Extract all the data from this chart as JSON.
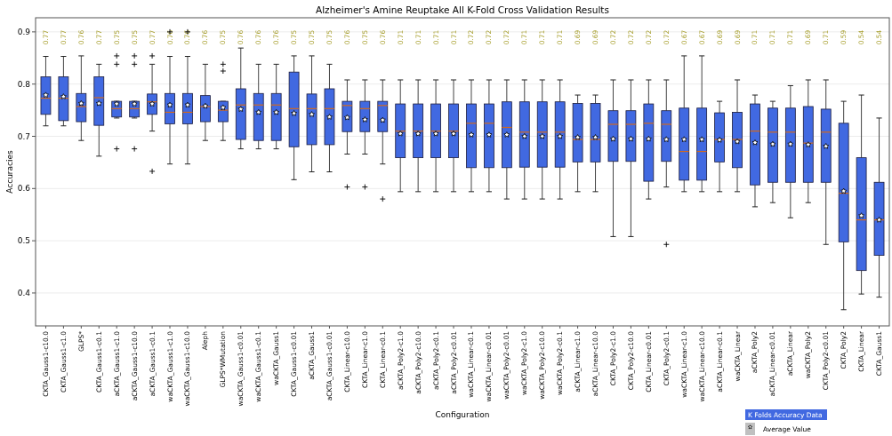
{
  "chart_data": {
    "type": "box",
    "title": "Alzheimer's Amine Reuptake All K-Fold Cross Validation Results",
    "xlabel": "Configuration",
    "ylabel": "Accuracies",
    "categories": [
      "CKTA_Gauss1-c10.0",
      "CKTA_Gauss1-c1.0",
      "GLPS*",
      "CKTA_Gauss1-c0.1",
      "aCKTA_Gauss1-c1.0",
      "aCKTA_Gauss1-c10.0",
      "aCKTA_Gauss1-c0.1",
      "waCKTA_Gauss1-c1.0",
      "waCKTA_Gauss1-c10.0",
      "Aleph",
      "GLPS*WMutation",
      "waCKTA_Gauss1-c0.01",
      "waCKTA_Gauss1-c0.1",
      "waCKTA_Gauss1",
      "CKTA_Gauss1-c0.01",
      "aCKTA_Gauss1",
      "aCKTA_Gauss1-c0.01",
      "CKTA_Linear-c10.0",
      "CKTA_Linear-c1.0",
      "CKTA_Linear-c0.1",
      "aCKTA_Poly2-c1.0",
      "aCKTA_Poly2-c10.0",
      "aCKTA_Poly2-c0.1",
      "aCKTA_Poly2-c0.01",
      "waCKTA_Linear-c0.1",
      "waCKTA_Linear-c0.01",
      "waCKTA_Poly2-c0.01",
      "waCKTA_Poly2-c1.0",
      "waCKTA_Poly2-c10.0",
      "waCKTA_Poly2-c0.1",
      "aCKTA_Linear-c1.0",
      "aCKTA_Linear-c10.0",
      "CKTA_Poly2-c1.0",
      "CKTA_Poly2-c10.0",
      "CKTA_Linear-c0.01",
      "CKTA_Poly2-c0.1",
      "waCKTA_Linear-c1.0",
      "waCKTA_Linear-c10.0",
      "aCKTA_Linear-c0.1",
      "waCKTA_Linear",
      "aCKTA_Poly2",
      "aCKTA_Linear-c0.01",
      "aCKTA_Linear",
      "waCKTA_Poly2",
      "CKTA_Poly2-c0.01",
      "CKTA_Poly2",
      "CKTA_Linear",
      "CKTA_Gauss1"
    ],
    "series": [
      {
        "name": "K Folds Accuracy Data",
        "color": "#4169e1",
        "boxes": [
          {
            "low": 0.72,
            "q1": 0.742,
            "median": 0.773,
            "q3": 0.814,
            "high": 0.853
          },
          {
            "low": 0.72,
            "q1": 0.73,
            "median": 0.773,
            "q3": 0.814,
            "high": 0.853
          },
          {
            "low": 0.692,
            "q1": 0.728,
            "median": 0.757,
            "q3": 0.782,
            "high": 0.854
          },
          {
            "low": 0.662,
            "q1": 0.721,
            "median": 0.774,
            "q3": 0.814,
            "high": 0.838
          },
          {
            "low": 0.735,
            "q1": 0.737,
            "median": 0.753,
            "q3": 0.767,
            "high": 0.767,
            "outliers": [
              0.854,
              0.838,
              0.676
            ]
          },
          {
            "low": 0.735,
            "q1": 0.737,
            "median": 0.753,
            "q3": 0.767,
            "high": 0.767,
            "outliers": [
              0.854,
              0.838,
              0.676
            ]
          },
          {
            "low": 0.71,
            "q1": 0.742,
            "median": 0.766,
            "q3": 0.781,
            "high": 0.838,
            "outliers": [
              0.854,
              0.633
            ]
          },
          {
            "low": 0.647,
            "q1": 0.724,
            "median": 0.746,
            "q3": 0.782,
            "high": 0.853,
            "outliers": [
              0.9
            ]
          },
          {
            "low": 0.647,
            "q1": 0.724,
            "median": 0.746,
            "q3": 0.782,
            "high": 0.853,
            "outliers": [
              0.9
            ]
          },
          {
            "low": 0.692,
            "q1": 0.728,
            "median": 0.757,
            "q3": 0.778,
            "high": 0.838
          },
          {
            "low": 0.692,
            "q1": 0.728,
            "median": 0.75,
            "q3": 0.767,
            "high": 0.767,
            "outliers": [
              0.838,
              0.825
            ]
          },
          {
            "low": 0.676,
            "q1": 0.694,
            "median": 0.76,
            "q3": 0.791,
            "high": 0.869
          },
          {
            "low": 0.676,
            "q1": 0.692,
            "median": 0.76,
            "q3": 0.782,
            "high": 0.838
          },
          {
            "low": 0.676,
            "q1": 0.692,
            "median": 0.76,
            "q3": 0.782,
            "high": 0.838
          },
          {
            "low": 0.617,
            "q1": 0.68,
            "median": 0.753,
            "q3": 0.823,
            "high": 0.854
          },
          {
            "low": 0.632,
            "q1": 0.684,
            "median": 0.753,
            "q3": 0.781,
            "high": 0.854
          },
          {
            "low": 0.632,
            "q1": 0.684,
            "median": 0.753,
            "q3": 0.791,
            "high": 0.838
          },
          {
            "low": 0.666,
            "q1": 0.709,
            "median": 0.759,
            "q3": 0.767,
            "high": 0.808,
            "outliers": [
              0.603
            ]
          },
          {
            "low": 0.666,
            "q1": 0.709,
            "median": 0.753,
            "q3": 0.767,
            "high": 0.808,
            "outliers": [
              0.603
            ]
          },
          {
            "low": 0.647,
            "q1": 0.709,
            "median": 0.759,
            "q3": 0.767,
            "high": 0.808,
            "outliers": [
              0.58
            ]
          },
          {
            "low": 0.594,
            "q1": 0.659,
            "median": 0.71,
            "q3": 0.762,
            "high": 0.808
          },
          {
            "low": 0.594,
            "q1": 0.659,
            "median": 0.71,
            "q3": 0.762,
            "high": 0.808
          },
          {
            "low": 0.594,
            "q1": 0.659,
            "median": 0.71,
            "q3": 0.762,
            "high": 0.808
          },
          {
            "low": 0.594,
            "q1": 0.659,
            "median": 0.71,
            "q3": 0.762,
            "high": 0.808
          },
          {
            "low": 0.594,
            "q1": 0.64,
            "median": 0.725,
            "q3": 0.762,
            "high": 0.808
          },
          {
            "low": 0.594,
            "q1": 0.64,
            "median": 0.725,
            "q3": 0.762,
            "high": 0.808
          },
          {
            "low": 0.58,
            "q1": 0.64,
            "median": 0.717,
            "q3": 0.766,
            "high": 0.808
          },
          {
            "low": 0.58,
            "q1": 0.641,
            "median": 0.708,
            "q3": 0.766,
            "high": 0.808
          },
          {
            "low": 0.58,
            "q1": 0.641,
            "median": 0.708,
            "q3": 0.766,
            "high": 0.808
          },
          {
            "low": 0.58,
            "q1": 0.641,
            "median": 0.708,
            "q3": 0.766,
            "high": 0.808
          },
          {
            "low": 0.594,
            "q1": 0.651,
            "median": 0.694,
            "q3": 0.763,
            "high": 0.779
          },
          {
            "low": 0.594,
            "q1": 0.651,
            "median": 0.694,
            "q3": 0.763,
            "high": 0.779
          },
          {
            "low": 0.508,
            "q1": 0.652,
            "median": 0.723,
            "q3": 0.749,
            "high": 0.808
          },
          {
            "low": 0.508,
            "q1": 0.652,
            "median": 0.723,
            "q3": 0.749,
            "high": 0.808
          },
          {
            "low": 0.58,
            "q1": 0.614,
            "median": 0.725,
            "q3": 0.762,
            "high": 0.808
          },
          {
            "low": 0.603,
            "q1": 0.652,
            "median": 0.723,
            "q3": 0.749,
            "high": 0.808,
            "outliers": [
              0.493
            ]
          },
          {
            "low": 0.594,
            "q1": 0.616,
            "median": 0.671,
            "q3": 0.754,
            "high": 0.854
          },
          {
            "low": 0.594,
            "q1": 0.616,
            "median": 0.671,
            "q3": 0.754,
            "high": 0.854
          },
          {
            "low": 0.594,
            "q1": 0.651,
            "median": 0.694,
            "q3": 0.745,
            "high": 0.767
          },
          {
            "low": 0.594,
            "q1": 0.64,
            "median": 0.694,
            "q3": 0.746,
            "high": 0.808
          },
          {
            "low": 0.565,
            "q1": 0.607,
            "median": 0.71,
            "q3": 0.762,
            "high": 0.779
          },
          {
            "low": 0.573,
            "q1": 0.612,
            "median": 0.708,
            "q3": 0.754,
            "high": 0.767
          },
          {
            "low": 0.544,
            "q1": 0.612,
            "median": 0.708,
            "q3": 0.754,
            "high": 0.797
          },
          {
            "low": 0.573,
            "q1": 0.612,
            "median": 0.687,
            "q3": 0.757,
            "high": 0.808
          },
          {
            "low": 0.493,
            "q1": 0.612,
            "median": 0.708,
            "q3": 0.752,
            "high": 0.808
          },
          {
            "low": 0.368,
            "q1": 0.498,
            "median": 0.591,
            "q3": 0.725,
            "high": 0.767
          },
          {
            "low": 0.398,
            "q1": 0.443,
            "median": 0.54,
            "q3": 0.659,
            "high": 0.779
          },
          {
            "low": 0.392,
            "q1": 0.472,
            "median": 0.54,
            "q3": 0.612,
            "high": 0.735
          }
        ]
      },
      {
        "name": "Average Value",
        "type": "scatter",
        "color": "#ffffff",
        "marker": "star",
        "values": [
          0.779,
          0.776,
          0.763,
          0.763,
          0.762,
          0.762,
          0.762,
          0.76,
          0.76,
          0.758,
          0.755,
          0.752,
          0.746,
          0.746,
          0.744,
          0.742,
          0.737,
          0.736,
          0.732,
          0.731,
          0.705,
          0.705,
          0.705,
          0.705,
          0.703,
          0.703,
          0.703,
          0.7,
          0.7,
          0.7,
          0.698,
          0.698,
          0.695,
          0.695,
          0.695,
          0.694,
          0.694,
          0.694,
          0.693,
          0.69,
          0.688,
          0.685,
          0.685,
          0.684,
          0.681,
          0.595,
          0.548,
          0.54
        ]
      }
    ],
    "annotations": [
      "0.77",
      "0.77",
      "0.76",
      "0.77",
      "0.75",
      "0.75",
      "0.77",
      "0.76",
      "0.76",
      "0.76",
      "0.75",
      "0.76",
      "0.76",
      "0.76",
      "0.75",
      "0.75",
      "0.75",
      "0.76",
      "0.75",
      "0.76",
      "0.71",
      "0.71",
      "0.71",
      "0.71",
      "0.72",
      "0.72",
      "0.72",
      "0.71",
      "0.71",
      "0.71",
      "0.69",
      "0.69",
      "0.72",
      "0.72",
      "0.72",
      "0.72",
      "0.67",
      "0.67",
      "0.69",
      "0.69",
      "0.71",
      "0.71",
      "0.71",
      "0.69",
      "0.71",
      "0.59",
      "0.54",
      "0.54"
    ],
    "ylim": [
      0.337,
      0.927
    ],
    "yticks": [
      0.4,
      0.5,
      0.6,
      0.7,
      0.8,
      0.9
    ],
    "grid": "y",
    "legend": "bottom right"
  }
}
